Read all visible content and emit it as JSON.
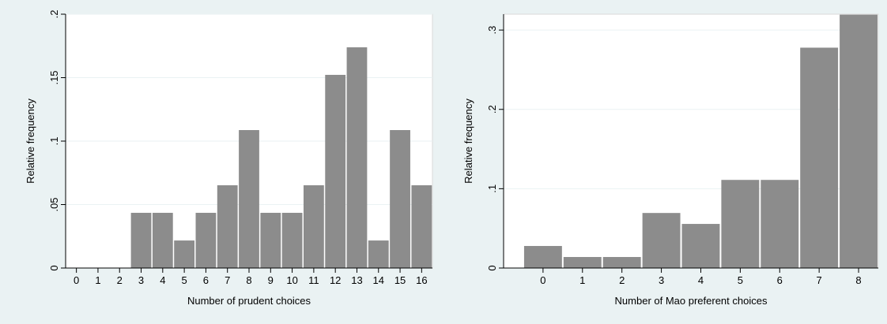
{
  "chart_data": [
    {
      "type": "bar",
      "xlabel": "Number of prudent choices",
      "ylabel": "Relative frequency",
      "categories": [
        "0",
        "1",
        "2",
        "3",
        "4",
        "5",
        "6",
        "7",
        "8",
        "9",
        "10",
        "11",
        "12",
        "13",
        "14",
        "15",
        "16"
      ],
      "values": [
        0,
        0,
        0,
        0.0435,
        0.0435,
        0.0217,
        0.0435,
        0.0652,
        0.1087,
        0.0435,
        0.0435,
        0.0652,
        0.1522,
        0.1739,
        0.0217,
        0.1087,
        0.0652
      ],
      "ylim": [
        0,
        0.2
      ],
      "yticks": [
        0,
        0.05,
        0.1,
        0.15,
        0.2
      ],
      "ytick_labels": [
        "0",
        ".05",
        ".1",
        ".15",
        ".2"
      ],
      "grid": true,
      "bar_color": "#8c8c8c"
    },
    {
      "type": "bar",
      "xlabel": "Number of Mao preferent choices",
      "ylabel": "Relative frequency",
      "categories": [
        "0",
        "1",
        "2",
        "3",
        "4",
        "5",
        "6",
        "7",
        "8"
      ],
      "values": [
        0.0278,
        0.0139,
        0.0139,
        0.0694,
        0.0556,
        0.1111,
        0.1111,
        0.2778,
        0.3194
      ],
      "ylim": [
        0,
        0.32
      ],
      "yticks": [
        0,
        0.1,
        0.2,
        0.3
      ],
      "ytick_labels": [
        "0",
        ".1",
        ".2",
        ".3"
      ],
      "grid": true,
      "bar_color": "#8c8c8c"
    }
  ]
}
